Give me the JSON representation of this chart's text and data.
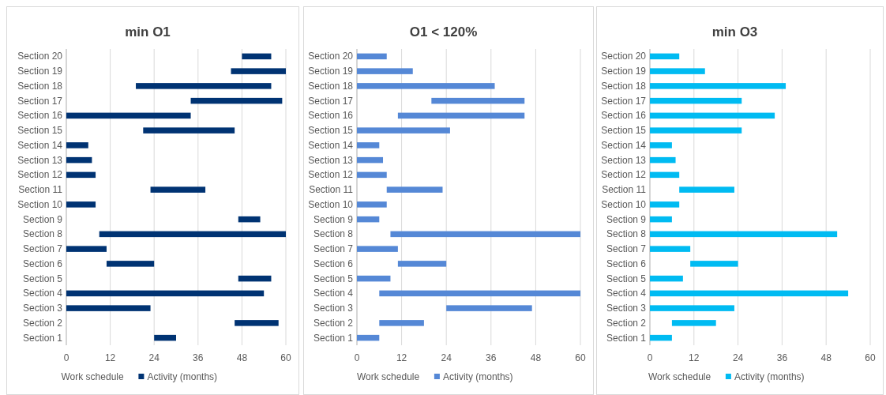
{
  "chart_data": [
    {
      "type": "bar",
      "title": "min O1",
      "orientation": "horizontal",
      "legend": "bottom",
      "legend_title": "Work schedule",
      "grid": "x",
      "xlim": [
        0,
        60
      ],
      "xticks": [
        0,
        12,
        24,
        36,
        48,
        60
      ],
      "categories": [
        "Section 20",
        "Section 19",
        "Section 18",
        "Section 17",
        "Section 16",
        "Section 15",
        "Section 14",
        "Section 13",
        "Section 12",
        "Section 11",
        "Section 10",
        "Section 9",
        "Section 8",
        "Section 7",
        "Section 6",
        "Section 5",
        "Section 4",
        "Section 3",
        "Section 2",
        "Section 1"
      ],
      "series": [
        {
          "name": "Activity (months)",
          "color": "#003373",
          "base": [
            48,
            45,
            19,
            34,
            0,
            21,
            0,
            0,
            0,
            23,
            0,
            47,
            9,
            0,
            11,
            47,
            0,
            0,
            46,
            24
          ],
          "values": [
            8,
            15,
            37,
            25,
            34,
            25,
            6,
            7,
            8,
            15,
            8,
            6,
            51,
            11,
            13,
            9,
            54,
            23,
            12,
            6
          ]
        }
      ]
    },
    {
      "type": "bar",
      "title": "O1 < 120%",
      "orientation": "horizontal",
      "legend": "bottom",
      "legend_title": "Work schedule",
      "grid": "x",
      "xlim": [
        0,
        60
      ],
      "xticks": [
        0,
        12,
        24,
        36,
        48,
        60
      ],
      "categories": [
        "Section 20",
        "Section 19",
        "Section 18",
        "Section 17",
        "Section 16",
        "Section 15",
        "Section 14",
        "Section 13",
        "Section 12",
        "Section 11",
        "Section 10",
        "Section 9",
        "Section 8",
        "Section 7",
        "Section 6",
        "Section 5",
        "Section 4",
        "Section 3",
        "Section 2",
        "Section 1"
      ],
      "series": [
        {
          "name": "Activity (months)",
          "color": "#5588d6",
          "base": [
            0,
            0,
            0,
            20,
            11,
            0,
            0,
            0,
            0,
            8,
            0,
            0,
            9,
            0,
            11,
            0,
            6,
            24,
            6,
            0
          ],
          "values": [
            8,
            15,
            37,
            25,
            34,
            25,
            6,
            7,
            8,
            15,
            8,
            6,
            51,
            11,
            13,
            9,
            54,
            23,
            12,
            6
          ]
        }
      ]
    },
    {
      "type": "bar",
      "title": "min O3",
      "orientation": "horizontal",
      "legend": "bottom",
      "legend_title": "Work schedule",
      "grid": "x",
      "xlim": [
        0,
        60
      ],
      "xticks": [
        0,
        12,
        24,
        36,
        48,
        60
      ],
      "categories": [
        "Section 20",
        "Section 19",
        "Section 18",
        "Section 17",
        "Section 16",
        "Section 15",
        "Section 14",
        "Section 13",
        "Section 12",
        "Section 11",
        "Section 10",
        "Section 9",
        "Section 8",
        "Section 7",
        "Section 6",
        "Section 5",
        "Section 4",
        "Section 3",
        "Section 2",
        "Section 1"
      ],
      "series": [
        {
          "name": "Activity (months)",
          "color": "#00bbf2",
          "base": [
            0,
            0,
            0,
            0,
            0,
            0,
            0,
            0,
            0,
            8,
            0,
            0,
            0,
            0,
            11,
            0,
            0,
            0,
            6,
            0
          ],
          "values": [
            8,
            15,
            37,
            25,
            34,
            25,
            6,
            7,
            8,
            15,
            8,
            6,
            51,
            11,
            13,
            9,
            54,
            23,
            12,
            6
          ]
        }
      ]
    }
  ]
}
